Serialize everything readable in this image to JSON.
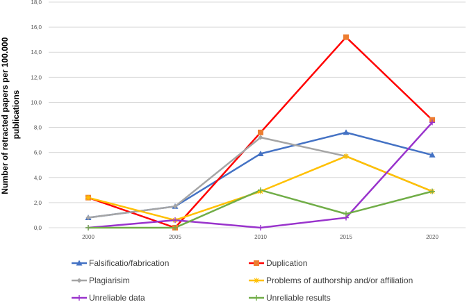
{
  "chart_data": {
    "type": "line",
    "title": "",
    "xlabel": "",
    "ylabel": "Number of retracted papers per 100.000 publications",
    "ylabel_lines": [
      "Number of retracted papers per 100.000",
      "publications"
    ],
    "x": [
      "2000",
      "2005",
      "2010",
      "2015",
      "2020"
    ],
    "y_ticks": [
      "0,0",
      "2,0",
      "4,0",
      "6,0",
      "8,0",
      "10,0",
      "12,0",
      "14,0",
      "16,0",
      "18,0"
    ],
    "ylim": [
      0,
      18
    ],
    "grid": true,
    "legend_position": "bottom",
    "series": [
      {
        "name": "Falsificatio/fabrication",
        "values": [
          0.8,
          1.7,
          5.9,
          7.6,
          5.8
        ],
        "color": "#4472C4",
        "marker": "triangle"
      },
      {
        "name": "Duplication",
        "values": [
          2.4,
          0.0,
          7.6,
          15.2,
          8.6
        ],
        "color": "#FF0000",
        "marker": "square",
        "marker_color": "#ED7D31"
      },
      {
        "name": "Plagiarisim",
        "values": [
          0.8,
          1.7,
          7.2,
          5.7,
          2.9
        ],
        "color": "#A5A5A5",
        "marker": "diamond"
      },
      {
        "name": "Problems of authorship and/or affiliation",
        "values": [
          2.4,
          0.6,
          2.9,
          5.7,
          2.9
        ],
        "color": "#FFC000",
        "marker": "star"
      },
      {
        "name": "Unreliable data",
        "values": [
          0.0,
          0.6,
          0.0,
          0.8,
          8.4
        ],
        "color": "#9933CC",
        "marker": "plus"
      },
      {
        "name": "Unreliable results",
        "values": [
          0.0,
          0.0,
          3.0,
          1.1,
          2.9
        ],
        "color": "#70AD47",
        "marker": "plus"
      }
    ]
  }
}
